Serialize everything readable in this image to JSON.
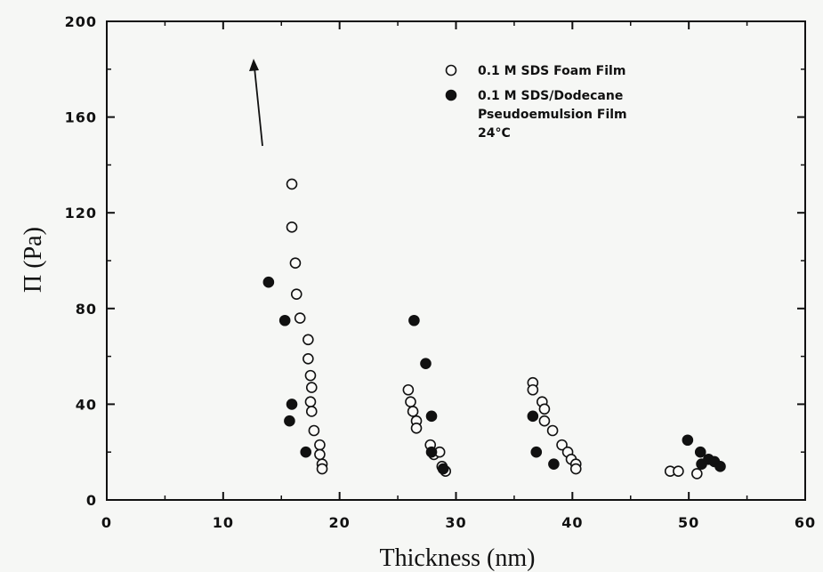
{
  "chart_data": {
    "type": "scatter",
    "title": "",
    "xlabel": "Thickness (nm)",
    "ylabel": "Π (Pa)",
    "xlim": [
      0,
      60
    ],
    "ylim": [
      0,
      200
    ],
    "x_ticks": [
      0,
      10,
      20,
      30,
      40,
      50,
      60
    ],
    "y_ticks": [
      0,
      40,
      80,
      120,
      160,
      200
    ],
    "grid": false,
    "legend_position": "top-right",
    "series": [
      {
        "name": "0.1 M SDS Foam Film",
        "marker": "open-circle",
        "points": [
          [
            15.9,
            132
          ],
          [
            15.9,
            114
          ],
          [
            16.2,
            99
          ],
          [
            16.3,
            86
          ],
          [
            16.6,
            76
          ],
          [
            17.3,
            67
          ],
          [
            17.3,
            59
          ],
          [
            17.5,
            52
          ],
          [
            17.6,
            47
          ],
          [
            17.5,
            41
          ],
          [
            17.6,
            37
          ],
          [
            17.8,
            29
          ],
          [
            18.3,
            23
          ],
          [
            18.3,
            19
          ],
          [
            18.5,
            15
          ],
          [
            18.5,
            13
          ],
          [
            25.9,
            46
          ],
          [
            26.1,
            41
          ],
          [
            26.3,
            37
          ],
          [
            26.6,
            33
          ],
          [
            26.6,
            30
          ],
          [
            27.8,
            23
          ],
          [
            28.1,
            19
          ],
          [
            28.6,
            20
          ],
          [
            28.8,
            14
          ],
          [
            29.1,
            12
          ],
          [
            36.6,
            49
          ],
          [
            36.6,
            46
          ],
          [
            37.4,
            41
          ],
          [
            37.6,
            38
          ],
          [
            37.6,
            33
          ],
          [
            38.3,
            29
          ],
          [
            39.1,
            23
          ],
          [
            39.6,
            20
          ],
          [
            39.9,
            17
          ],
          [
            40.3,
            15
          ],
          [
            40.3,
            13
          ],
          [
            48.4,
            12
          ],
          [
            49.1,
            12
          ],
          [
            50.7,
            11
          ]
        ]
      },
      {
        "name": "0.1 M SDS/Dodecane Pseudoemulsion Film",
        "marker": "filled-circle",
        "points": [
          [
            13.9,
            91
          ],
          [
            15.3,
            75
          ],
          [
            15.9,
            40
          ],
          [
            15.7,
            33
          ],
          [
            17.1,
            20
          ],
          [
            26.4,
            75
          ],
          [
            27.4,
            57
          ],
          [
            27.9,
            35
          ],
          [
            27.9,
            20
          ],
          [
            28.9,
            13
          ],
          [
            36.6,
            35
          ],
          [
            36.9,
            20
          ],
          [
            38.4,
            15
          ],
          [
            49.9,
            25
          ],
          [
            51.0,
            20
          ],
          [
            51.1,
            15
          ],
          [
            51.7,
            17
          ],
          [
            52.2,
            16
          ],
          [
            52.7,
            14
          ]
        ]
      }
    ],
    "annotations": [
      "24°C"
    ]
  }
}
